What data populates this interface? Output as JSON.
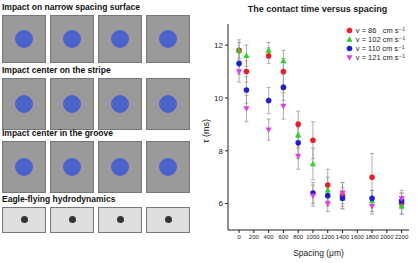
{
  "panels": [
    {
      "title": "Impact on narrow spacing surface"
    },
    {
      "title": "Impact center on the stripe"
    },
    {
      "title": "Impact center in the groove"
    },
    {
      "title": "Eagle-flying hydrodynamics"
    }
  ],
  "chart_data": {
    "type": "scatter",
    "title": "The contact time versus spacing",
    "x_label": "Spacing (μm)",
    "y_label": "τ (ms)",
    "x": [
      0,
      100,
      400,
      600,
      800,
      1000,
      1200,
      1400,
      1800,
      2200
    ],
    "xlim": [
      -150,
      2300
    ],
    "xticks": [
      0,
      200,
      400,
      600,
      800,
      1000,
      1200,
      1400,
      1600,
      1800,
      2000,
      2200
    ],
    "ylim": [
      5,
      12.8
    ],
    "yticks": [
      6,
      8,
      10,
      12
    ],
    "grid": false,
    "legend": "upper right",
    "series": [
      {
        "name": "v = 86   cm s⁻¹",
        "color": "#e8202a",
        "marker": "circle",
        "values": [
          11.8,
          11.0,
          11.6,
          11.0,
          9.0,
          8.4,
          6.7,
          6.3,
          7.0,
          6.0
        ],
        "errors": [
          0.4,
          0.4,
          0.3,
          0.5,
          0.5,
          0.7,
          0.6,
          0.5,
          0.9,
          0.4
        ]
      },
      {
        "name": "v = 102 cm s⁻¹",
        "color": "#2fd02f",
        "marker": "triangle",
        "values": [
          11.8,
          11.6,
          11.8,
          11.4,
          8.6,
          7.5,
          6.5,
          6.2,
          6.1,
          5.9
        ],
        "errors": [
          0.3,
          0.4,
          0.3,
          0.4,
          0.5,
          0.6,
          0.5,
          0.4,
          0.4,
          0.3
        ]
      },
      {
        "name": "v = 110 cm s⁻¹",
        "color": "#2020d0",
        "marker": "circle",
        "values": [
          11.3,
          10.3,
          9.9,
          10.4,
          8.3,
          6.4,
          6.3,
          6.2,
          6.2,
          6.1
        ],
        "errors": [
          0.4,
          0.5,
          0.5,
          0.5,
          0.6,
          0.4,
          0.4,
          0.3,
          0.3,
          0.3
        ]
      },
      {
        "name": "v = 121 cm s⁻¹",
        "color": "#e040e0",
        "marker": "triangle-down",
        "values": [
          11.0,
          9.6,
          8.8,
          9.7,
          7.8,
          6.3,
          6.0,
          6.4,
          5.9,
          6.2
        ],
        "errors": [
          0.4,
          0.5,
          0.4,
          0.5,
          0.5,
          0.4,
          0.3,
          0.4,
          0.3,
          0.3
        ]
      }
    ]
  }
}
